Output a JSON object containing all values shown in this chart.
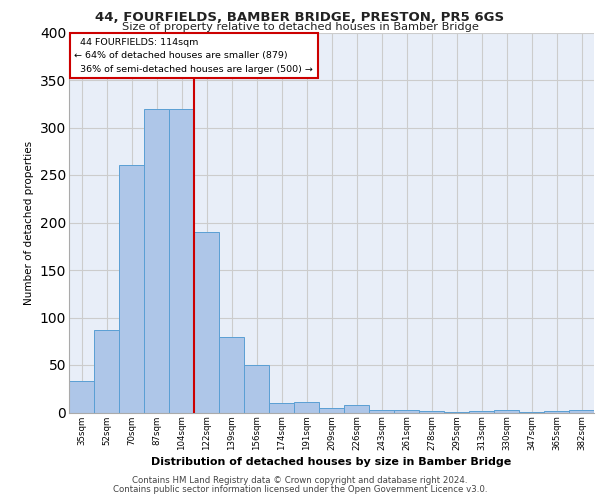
{
  "title": "44, FOURFIELDS, BAMBER BRIDGE, PRESTON, PR5 6GS",
  "subtitle": "Size of property relative to detached houses in Bamber Bridge",
  "xlabel": "Distribution of detached houses by size in Bamber Bridge",
  "ylabel": "Number of detached properties",
  "categories": [
    "35sqm",
    "52sqm",
    "70sqm",
    "87sqm",
    "104sqm",
    "122sqm",
    "139sqm",
    "156sqm",
    "174sqm",
    "191sqm",
    "209sqm",
    "226sqm",
    "243sqm",
    "261sqm",
    "278sqm",
    "295sqm",
    "313sqm",
    "330sqm",
    "347sqm",
    "365sqm",
    "382sqm"
  ],
  "values": [
    33,
    87,
    260,
    320,
    320,
    190,
    80,
    50,
    10,
    11,
    5,
    8,
    3,
    3,
    2,
    1,
    2,
    3,
    1,
    2,
    3
  ],
  "bar_color": "#aec6e8",
  "bar_edge_color": "#5a9fd4",
  "vline_x": 4.5,
  "marker_label": "44 FOURFIELDS: 114sqm",
  "marker_pct_smaller": "64% of detached houses are smaller (879)",
  "marker_pct_larger": "36% of semi-detached houses are larger (500)",
  "vline_color": "#cc0000",
  "annotation_edge": "#cc0000",
  "ylim": [
    0,
    400
  ],
  "yticks": [
    0,
    50,
    100,
    150,
    200,
    250,
    300,
    350,
    400
  ],
  "grid_color": "#cccccc",
  "bg_color": "#e8eef8",
  "footer1": "Contains HM Land Registry data © Crown copyright and database right 2024.",
  "footer2": "Contains public sector information licensed under the Open Government Licence v3.0."
}
